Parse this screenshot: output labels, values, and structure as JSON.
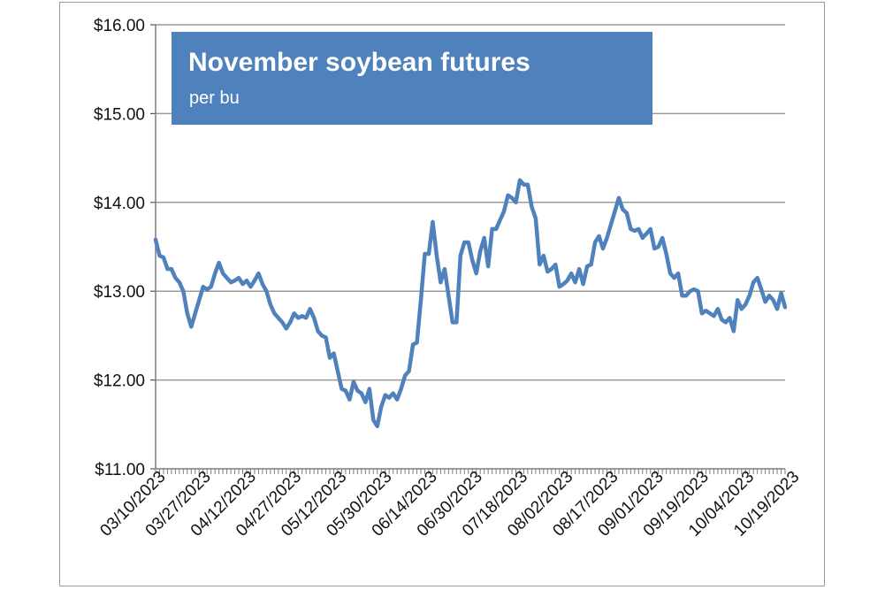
{
  "chart_data": {
    "type": "line",
    "title": "November soybean futures",
    "subtitle": "per bu",
    "xlabel": "",
    "ylabel": "",
    "ylim": [
      11,
      16
    ],
    "yticks": [
      "$11.00",
      "$12.00",
      "$13.00",
      "$14.00",
      "$15.00",
      "$16.00"
    ],
    "xticks": [
      "03/10/2023",
      "03/27/2023",
      "04/12/2023",
      "04/27/2023",
      "05/12/2023",
      "05/30/2023",
      "06/14/2023",
      "06/30/2023",
      "07/18/2023",
      "08/02/2023",
      "08/17/2023",
      "09/01/2023",
      "09/19/2023",
      "10/04/2023",
      "10/19/2023"
    ],
    "grid": true,
    "legend": "none",
    "colors": {
      "line": "#4f81bd",
      "title_box": "#4f81bd",
      "grid": "#9a9a9a"
    },
    "series": [
      {
        "values": [
          13.58,
          13.4,
          13.38,
          13.25,
          13.25,
          13.15,
          13.1,
          13.0,
          12.75,
          12.6,
          12.75,
          12.9,
          13.05,
          13.02,
          13.05,
          13.2,
          13.32,
          13.2,
          13.15,
          13.1,
          13.12,
          13.15,
          13.08,
          13.12,
          13.05,
          13.12,
          13.2,
          13.08,
          13.0,
          12.85,
          12.75,
          12.7,
          12.65,
          12.58,
          12.65,
          12.75,
          12.7,
          12.72,
          12.7,
          12.8,
          12.7,
          12.55,
          12.5,
          12.48,
          12.25,
          12.3,
          12.1,
          11.9,
          11.88,
          11.78,
          11.98,
          11.88,
          11.85,
          11.75,
          11.9,
          11.55,
          11.48,
          11.7,
          11.83,
          11.8,
          11.85,
          11.78,
          11.9,
          12.05,
          12.1,
          12.4,
          12.42,
          12.9,
          13.42,
          13.42,
          13.78,
          13.4,
          13.1,
          13.25,
          12.95,
          12.65,
          12.65,
          13.4,
          13.55,
          13.55,
          13.35,
          13.2,
          13.45,
          13.6,
          13.28,
          13.7,
          13.7,
          13.8,
          13.9,
          14.08,
          14.05,
          14.0,
          14.25,
          14.2,
          14.2,
          13.95,
          13.82,
          13.3,
          13.4,
          13.22,
          13.25,
          13.3,
          13.05,
          13.08,
          13.12,
          13.2,
          13.1,
          13.25,
          13.08,
          13.28,
          13.3,
          13.55,
          13.62,
          13.48,
          13.6,
          13.75,
          13.9,
          14.05,
          13.92,
          13.88,
          13.7,
          13.68,
          13.7,
          13.6,
          13.65,
          13.7,
          13.48,
          13.5,
          13.6,
          13.42,
          13.2,
          13.15,
          13.2,
          12.95,
          12.95,
          13.0,
          13.02,
          13.0,
          12.75,
          12.78,
          12.75,
          12.72,
          12.8,
          12.68,
          12.65,
          12.7,
          12.55,
          12.9,
          12.8,
          12.85,
          12.95,
          13.1,
          13.15,
          13.02,
          12.88,
          12.95,
          12.9,
          12.8,
          12.98,
          12.82
        ]
      }
    ]
  }
}
